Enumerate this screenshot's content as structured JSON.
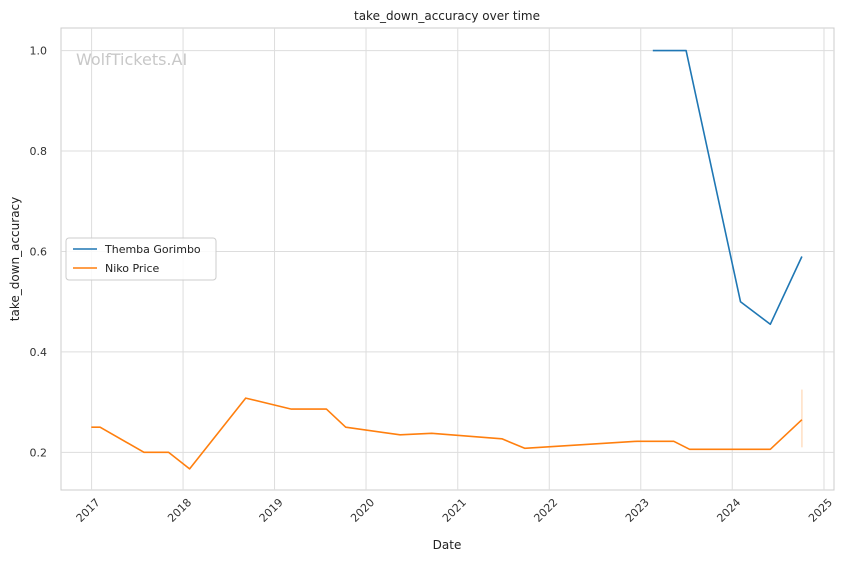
{
  "chart_data": {
    "type": "line",
    "title": "take_down_accuracy over time",
    "xlabel": "Date",
    "ylabel": "take_down_accuracy",
    "watermark": "WolfTickets.AI",
    "x_range": [
      "2016-09-01",
      "2025-02-10"
    ],
    "ylim": [
      0.125,
      1.045
    ],
    "x_ticks": [
      "2017",
      "2018",
      "2019",
      "2020",
      "2021",
      "2022",
      "2023",
      "2024",
      "2025"
    ],
    "y_ticks": [
      "0.2",
      "0.4",
      "0.6",
      "0.8",
      "1.0"
    ],
    "grid": true,
    "legend_position": "center-left",
    "series": [
      {
        "name": "Themba Gorimbo",
        "color": "#1f77b4",
        "points": [
          {
            "x": "2023-02-18",
            "y": 1.0
          },
          {
            "x": "2023-07-01",
            "y": 1.0
          },
          {
            "x": "2024-02-03",
            "y": 0.5
          },
          {
            "x": "2024-06-01",
            "y": 0.455
          },
          {
            "x": "2024-10-05",
            "y": 0.59
          }
        ]
      },
      {
        "name": "Niko Price",
        "color": "#ff7f0e",
        "points": [
          {
            "x": "2016-12-31",
            "y": 0.25
          },
          {
            "x": "2017-02-04",
            "y": 0.25
          },
          {
            "x": "2017-07-29",
            "y": 0.2
          },
          {
            "x": "2017-11-04",
            "y": 0.2
          },
          {
            "x": "2018-01-27",
            "y": 0.167
          },
          {
            "x": "2018-09-08",
            "y": 0.308
          },
          {
            "x": "2019-03-09",
            "y": 0.286
          },
          {
            "x": "2019-07-27",
            "y": 0.286
          },
          {
            "x": "2019-10-12",
            "y": 0.25
          },
          {
            "x": "2020-05-16",
            "y": 0.235
          },
          {
            "x": "2020-09-19",
            "y": 0.238
          },
          {
            "x": "2021-06-26",
            "y": 0.227
          },
          {
            "x": "2021-09-25",
            "y": 0.208
          },
          {
            "x": "2022-12-17",
            "y": 0.222
          },
          {
            "x": "2023-05-13",
            "y": 0.222
          },
          {
            "x": "2023-07-15",
            "y": 0.206
          },
          {
            "x": "2024-06-01",
            "y": 0.206
          },
          {
            "x": "2024-10-05",
            "y": 0.265
          }
        ],
        "error_band": {
          "x": "2024-10-05",
          "low": 0.21,
          "high": 0.325
        }
      }
    ]
  }
}
